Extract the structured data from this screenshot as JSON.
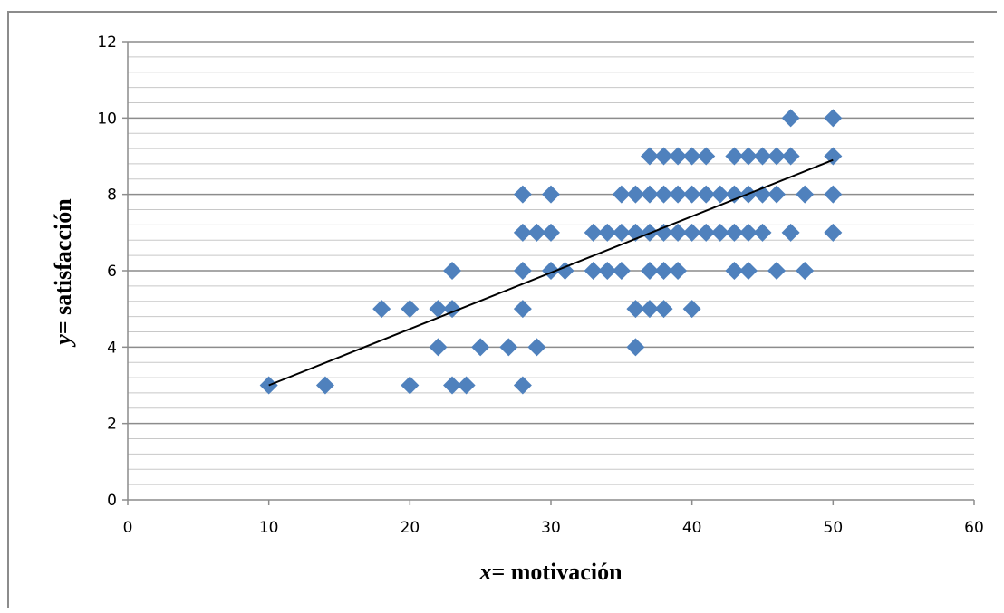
{
  "chart_data": {
    "type": "scatter",
    "xlabel": {
      "variable": "x",
      "rest": "= motivación"
    },
    "ylabel": {
      "variable": "y",
      "rest": "= satisfacción"
    },
    "xlim": [
      0,
      60
    ],
    "ylim": [
      0,
      12
    ],
    "x_ticks": [
      0,
      10,
      20,
      30,
      40,
      50,
      60
    ],
    "y_ticks": [
      0,
      2,
      4,
      6,
      8,
      10,
      12
    ],
    "minor_y_step": 0.4,
    "grid": {
      "major_color": "#8c8c8c",
      "minor_color": "#c8c8c8"
    },
    "marker": {
      "shape": "diamond",
      "color": "#4f81bd"
    },
    "trendline": {
      "x": [
        10,
        50
      ],
      "y": [
        3.0,
        8.9
      ],
      "color": "#000000"
    },
    "points": [
      [
        10,
        3
      ],
      [
        14,
        3
      ],
      [
        20,
        3
      ],
      [
        23,
        3
      ],
      [
        24,
        3
      ],
      [
        28,
        3
      ],
      [
        22,
        4
      ],
      [
        25,
        4
      ],
      [
        27,
        4
      ],
      [
        29,
        4
      ],
      [
        36,
        4
      ],
      [
        18,
        5
      ],
      [
        20,
        5
      ],
      [
        22,
        5
      ],
      [
        23,
        5
      ],
      [
        28,
        5
      ],
      [
        36,
        5
      ],
      [
        37,
        5
      ],
      [
        38,
        5
      ],
      [
        40,
        5
      ],
      [
        23,
        6
      ],
      [
        28,
        6
      ],
      [
        30,
        6
      ],
      [
        31,
        6
      ],
      [
        33,
        6
      ],
      [
        34,
        6
      ],
      [
        35,
        6
      ],
      [
        37,
        6
      ],
      [
        38,
        6
      ],
      [
        39,
        6
      ],
      [
        43,
        6
      ],
      [
        44,
        6
      ],
      [
        46,
        6
      ],
      [
        48,
        6
      ],
      [
        28,
        7
      ],
      [
        29,
        7
      ],
      [
        30,
        7
      ],
      [
        33,
        7
      ],
      [
        34,
        7
      ],
      [
        35,
        7
      ],
      [
        36,
        7
      ],
      [
        37,
        7
      ],
      [
        38,
        7
      ],
      [
        39,
        7
      ],
      [
        40,
        7
      ],
      [
        41,
        7
      ],
      [
        42,
        7
      ],
      [
        43,
        7
      ],
      [
        44,
        7
      ],
      [
        45,
        7
      ],
      [
        47,
        7
      ],
      [
        50,
        7
      ],
      [
        28,
        8
      ],
      [
        30,
        8
      ],
      [
        35,
        8
      ],
      [
        36,
        8
      ],
      [
        37,
        8
      ],
      [
        38,
        8
      ],
      [
        39,
        8
      ],
      [
        40,
        8
      ],
      [
        41,
        8
      ],
      [
        42,
        8
      ],
      [
        43,
        8
      ],
      [
        44,
        8
      ],
      [
        45,
        8
      ],
      [
        46,
        8
      ],
      [
        48,
        8
      ],
      [
        50,
        8
      ],
      [
        37,
        9
      ],
      [
        38,
        9
      ],
      [
        39,
        9
      ],
      [
        40,
        9
      ],
      [
        41,
        9
      ],
      [
        43,
        9
      ],
      [
        44,
        9
      ],
      [
        45,
        9
      ],
      [
        46,
        9
      ],
      [
        47,
        9
      ],
      [
        50,
        9
      ],
      [
        47,
        10
      ],
      [
        50,
        10
      ]
    ]
  }
}
